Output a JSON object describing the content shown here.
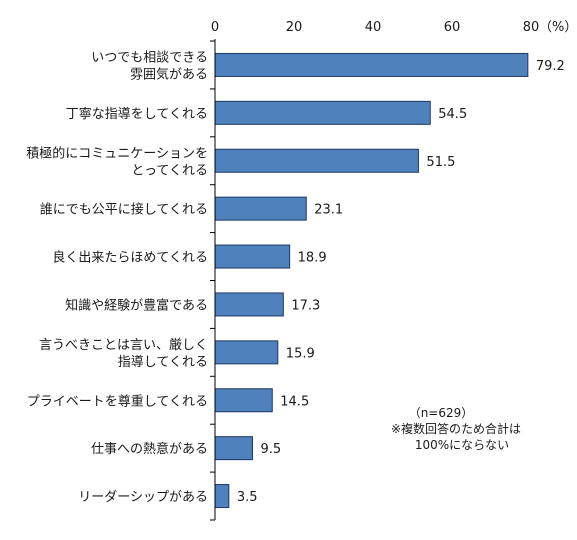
{
  "chart_data": {
    "type": "bar",
    "orientation": "horizontal",
    "categories": [
      [
        "いつでも相談できる",
        "雰囲気がある"
      ],
      [
        "丁寧な指導をしてくれる"
      ],
      [
        "積極的にコミュニケーションを",
        "とってくれる"
      ],
      [
        "誰にでも公平に接してくれる"
      ],
      [
        "良く出来たらほめてくれる"
      ],
      [
        "知識や経験が豊富である"
      ],
      [
        "言うべきことは言い、厳しく",
        "指導してくれる"
      ],
      [
        "プライベートを尊重してくれる"
      ],
      [
        "仕事への熱意がある"
      ],
      [
        "リーダーシップがある"
      ]
    ],
    "values": [
      79.2,
      54.5,
      51.5,
      23.1,
      18.9,
      17.3,
      15.9,
      14.5,
      9.5,
      3.5
    ],
    "value_labels": [
      "79.2",
      "54.5",
      "51.5",
      "23.1",
      "18.9",
      "17.3",
      "15.9",
      "14.5",
      "9.5",
      "3.5"
    ],
    "xlim": [
      0,
      80
    ],
    "x_ticks": [
      0,
      20,
      40,
      60,
      80
    ],
    "x_unit": "（%）",
    "grid": false,
    "bar_color": "#4f81bd",
    "bar_edge_color": "#1f3864",
    "notes": [
      "（n=629）",
      "※複数回答のため合計は",
      "100%にならない"
    ]
  }
}
